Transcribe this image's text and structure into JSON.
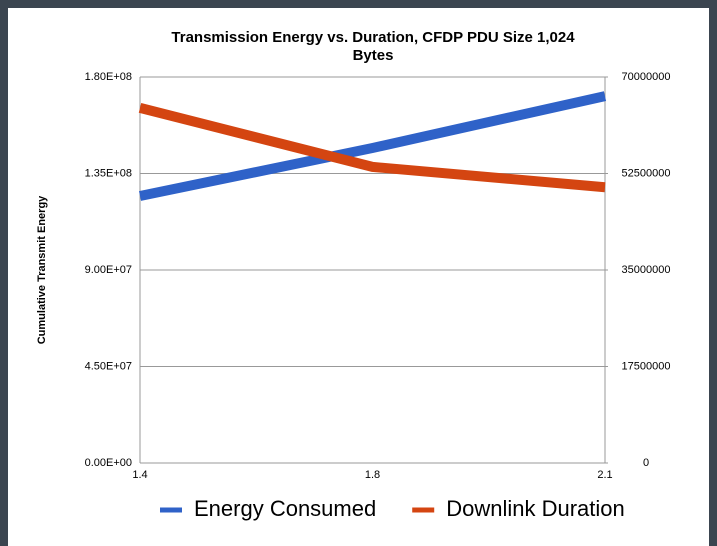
{
  "chart_data": {
    "type": "line",
    "title": "Transmission Energy vs. Duration, CFDP PDU Size 1,024 Bytes",
    "ylabel": "Cumulative Transmit Energy",
    "categories": [
      "1.4",
      "1.8",
      "2.1"
    ],
    "series": [
      {
        "name": "Energy Consumed",
        "color": "#2f62c8",
        "values": [
          124500000,
          146900000,
          171100000
        ]
      },
      {
        "name": "Downlink Duration",
        "color": "#d44511",
        "axis": "y2",
        "values": [
          64400000,
          53700000,
          50000000
        ]
      }
    ],
    "ylim": [
      0,
      180000000
    ],
    "yticks": [
      {
        "value": 0,
        "label": "0.00E+00"
      },
      {
        "value": 45000000,
        "label": "4.50E+07"
      },
      {
        "value": 90000000,
        "label": "9.00E+07"
      },
      {
        "value": 135000000,
        "label": "1.35E+08"
      },
      {
        "value": 180000000,
        "label": "1.80E+08"
      }
    ],
    "y2lim": [
      0,
      70000000
    ],
    "y2ticks": [
      0,
      17500000,
      35000000,
      52500000,
      70000000
    ],
    "grid": true,
    "legend": "bottom"
  }
}
